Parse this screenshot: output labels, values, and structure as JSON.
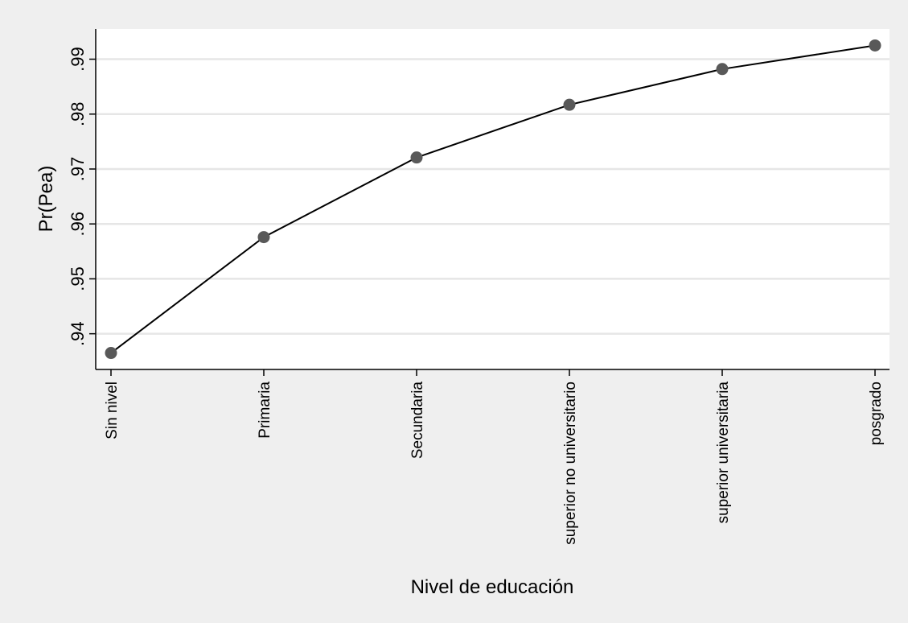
{
  "chart_data": {
    "type": "line",
    "title": "",
    "xlabel": "Nivel de educación",
    "ylabel": "Pr(Pea)",
    "categories": [
      "Sin nivel",
      "Primaria",
      "Secundaria",
      "superior no universitario",
      "superior universitaria",
      "posgrado"
    ],
    "series": [
      {
        "values": [
          0.9365,
          0.9576,
          0.9721,
          0.9817,
          0.9882,
          0.9925
        ]
      }
    ],
    "ylim": [
      0.9335,
      0.9955
    ],
    "yticks": [
      0.94,
      0.95,
      0.96,
      0.97,
      0.98,
      0.99
    ],
    "ytick_labels": [
      ".94",
      ".95",
      ".96",
      ".97",
      ".98",
      ".99"
    ],
    "grid": "horizontal",
    "legend": "none",
    "colors": {
      "outer_background": "#efefef",
      "plot_background": "#ffffff",
      "line": "#000000",
      "marker": "#595959",
      "grid": "#e6e6e6",
      "axis": "#000000"
    }
  }
}
